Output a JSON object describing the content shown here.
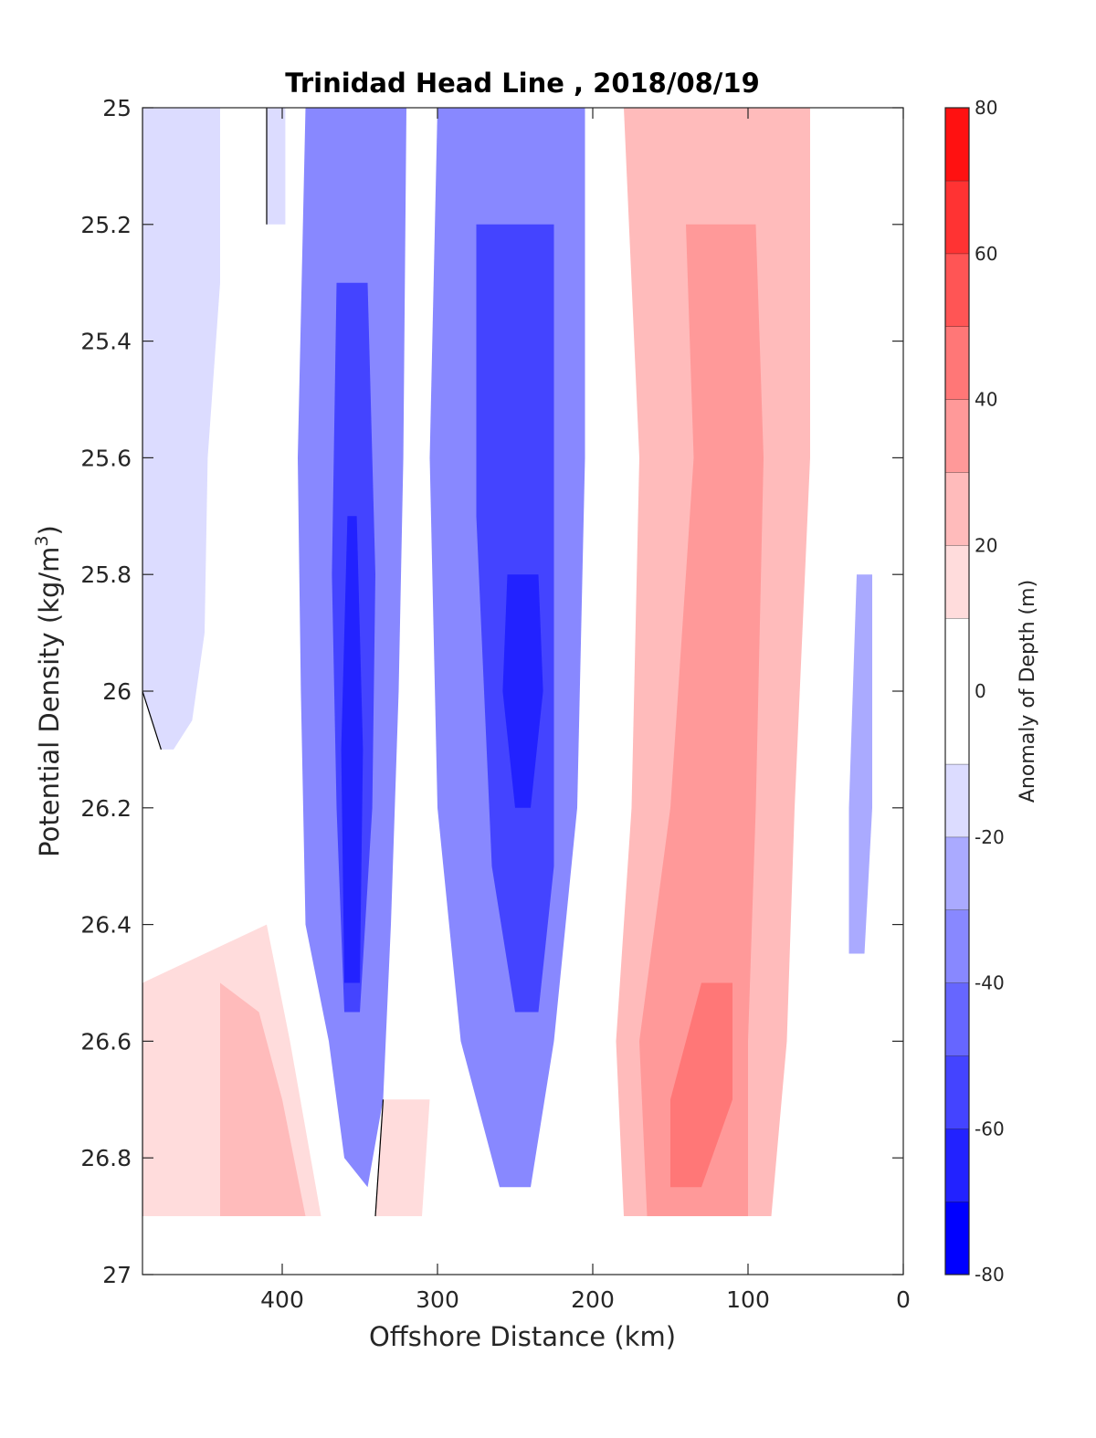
{
  "chart_data": {
    "type": "heatmap",
    "title": "Trinidad Head Line , 2018/08/19",
    "xlabel": "Offshore Distance (km)",
    "ylabel_main": "Potential Density (kg/m",
    "ylabel_sup": "3",
    "ylabel_close": ")",
    "colorbar_label": "Anomaly of Depth (m)",
    "x_axis": {
      "range": [
        490,
        0
      ],
      "reversed": true,
      "ticks": [
        400,
        300,
        200,
        100,
        0
      ]
    },
    "y_axis": {
      "range": [
        25,
        27
      ],
      "reversed": true,
      "ticks": [
        "25",
        "25.2",
        "25.4",
        "25.6",
        "25.8",
        "26",
        "26.2",
        "26.4",
        "26.6",
        "26.8",
        "27"
      ]
    },
    "colorbar": {
      "range": [
        -80,
        80
      ],
      "levels": [
        -80,
        -70,
        -60,
        -50,
        -40,
        -30,
        -20,
        -10,
        10,
        20,
        30,
        40,
        50,
        60,
        70,
        80
      ],
      "tick_labels": [
        "-80",
        "-60",
        "-40",
        "-20",
        "0",
        "20",
        "40",
        "60",
        "80"
      ],
      "colors": [
        "#0000ff",
        "#2222ff",
        "#4444ff",
        "#6666ff",
        "#8888ff",
        "#aaaaff",
        "#dcdcff",
        "#ffffff",
        "#ffdcdc",
        "#ffbbbb",
        "#ff9999",
        "#ff7777",
        "#ff5555",
        "#ff3333",
        "#ff1111"
      ]
    },
    "data_extent": {
      "y_max": 26.9,
      "x_min": 20
    },
    "bands": [
      {
        "name": "offshore-weak-negative",
        "value": -15,
        "left": [
          [
            490,
            25
          ],
          [
            490,
            26.0
          ],
          [
            478,
            26.1
          ]
        ],
        "right": [
          [
            440,
            25
          ],
          [
            440,
            25.3
          ],
          [
            448,
            25.6
          ],
          [
            450,
            25.9
          ],
          [
            458,
            26.05
          ],
          [
            470,
            26.1
          ]
        ]
      },
      {
        "name": "offshore-weak-negative-2",
        "value": -15,
        "left": [
          [
            410,
            25
          ],
          [
            410,
            25.2
          ]
        ],
        "right": [
          [
            398,
            25
          ],
          [
            398,
            25.2
          ]
        ]
      },
      {
        "name": "band-340-negative",
        "value": -40,
        "left": [
          [
            385,
            25
          ],
          [
            390,
            25.6
          ],
          [
            388,
            26.0
          ],
          [
            385,
            26.4
          ],
          [
            370,
            26.6
          ],
          [
            360,
            26.8
          ]
        ],
        "right": [
          [
            320,
            25
          ],
          [
            322,
            25.6
          ],
          [
            325,
            26.0
          ],
          [
            330,
            26.4
          ],
          [
            335,
            26.7
          ],
          [
            345,
            26.85
          ]
        ]
      },
      {
        "name": "band-340-core",
        "value": -55,
        "left": [
          [
            365,
            25.3
          ],
          [
            368,
            25.8
          ],
          [
            365,
            26.2
          ],
          [
            360,
            26.55
          ]
        ],
        "right": [
          [
            345,
            25.3
          ],
          [
            340,
            25.8
          ],
          [
            342,
            26.2
          ],
          [
            350,
            26.55
          ]
        ]
      },
      {
        "name": "band-340-deep",
        "value": -68,
        "left": [
          [
            358,
            25.7
          ],
          [
            362,
            26.1
          ],
          [
            360,
            26.5
          ]
        ],
        "right": [
          [
            352,
            25.7
          ],
          [
            348,
            26.1
          ],
          [
            350,
            26.5
          ]
        ]
      },
      {
        "name": "band-250-negative",
        "value": -35,
        "left": [
          [
            300,
            25
          ],
          [
            305,
            25.6
          ],
          [
            300,
            26.2
          ],
          [
            285,
            26.6
          ],
          [
            260,
            26.85
          ]
        ],
        "right": [
          [
            205,
            25
          ],
          [
            205,
            25.6
          ],
          [
            210,
            26.2
          ],
          [
            225,
            26.6
          ],
          [
            240,
            26.85
          ]
        ]
      },
      {
        "name": "band-250-core",
        "value": -52,
        "left": [
          [
            275,
            25.2
          ],
          [
            275,
            25.7
          ],
          [
            265,
            26.3
          ],
          [
            250,
            26.55
          ]
        ],
        "right": [
          [
            225,
            25.2
          ],
          [
            225,
            25.7
          ],
          [
            225,
            26.3
          ],
          [
            235,
            26.55
          ]
        ]
      },
      {
        "name": "band-250-deep",
        "value": -65,
        "left": [
          [
            255,
            25.8
          ],
          [
            258,
            26.0
          ],
          [
            250,
            26.2
          ]
        ],
        "right": [
          [
            235,
            25.8
          ],
          [
            232,
            26.0
          ],
          [
            240,
            26.2
          ]
        ]
      },
      {
        "name": "band-120-positive",
        "value": 25,
        "left": [
          [
            180,
            25
          ],
          [
            170,
            25.6
          ],
          [
            175,
            26.2
          ],
          [
            185,
            26.6
          ],
          [
            180,
            26.9
          ]
        ],
        "right": [
          [
            60,
            25
          ],
          [
            60,
            25.6
          ],
          [
            70,
            26.2
          ],
          [
            75,
            26.6
          ],
          [
            85,
            26.9
          ]
        ]
      },
      {
        "name": "band-120-core",
        "value": 35,
        "left": [
          [
            140,
            25.2
          ],
          [
            135,
            25.6
          ],
          [
            150,
            26.2
          ],
          [
            170,
            26.6
          ],
          [
            165,
            26.9
          ]
        ],
        "right": [
          [
            95,
            25.2
          ],
          [
            90,
            25.6
          ],
          [
            95,
            26.2
          ],
          [
            100,
            26.6
          ],
          [
            100,
            26.9
          ]
        ]
      },
      {
        "name": "band-120-deep",
        "value": 45,
        "left": [
          [
            130,
            26.5
          ],
          [
            150,
            26.7
          ],
          [
            150,
            26.85
          ]
        ],
        "right": [
          [
            110,
            26.5
          ],
          [
            110,
            26.7
          ],
          [
            130,
            26.85
          ]
        ]
      },
      {
        "name": "nearshore-negative",
        "value": -30,
        "left": [
          [
            30,
            25.8
          ],
          [
            35,
            26.2
          ],
          [
            35,
            26.45
          ]
        ],
        "right": [
          [
            20,
            25.8
          ],
          [
            20,
            26.2
          ],
          [
            25,
            26.45
          ]
        ]
      },
      {
        "name": "offshore-positive",
        "value": 15,
        "left": [
          [
            490,
            26.5
          ],
          [
            490,
            26.9
          ]
        ],
        "right": [
          [
            410,
            26.4
          ],
          [
            395,
            26.6
          ],
          [
            375,
            26.9
          ]
        ]
      },
      {
        "name": "offshore-positive-core",
        "value": 25,
        "left": [
          [
            440,
            26.5
          ],
          [
            440,
            26.9
          ]
        ],
        "right": [
          [
            415,
            26.55
          ],
          [
            400,
            26.7
          ],
          [
            385,
            26.9
          ]
        ]
      },
      {
        "name": "band-325-positive",
        "value": 15,
        "left": [
          [
            335,
            26.7
          ],
          [
            340,
            26.9
          ]
        ],
        "right": [
          [
            305,
            26.7
          ],
          [
            310,
            26.9
          ]
        ]
      }
    ]
  }
}
